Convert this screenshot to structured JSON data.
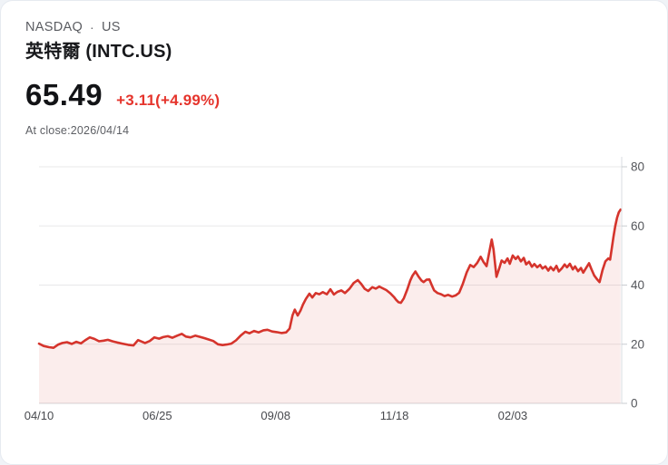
{
  "header": {
    "exchange": "NASDAQ",
    "separator": "·",
    "region": "US",
    "name": "英特爾 (INTC.US)"
  },
  "quote": {
    "price": "65.49",
    "change": "+3.11(+4.99%)",
    "as_of": "At close:2026/04/14"
  },
  "colors": {
    "change_up_red": "#e5342c",
    "line_red": "#d5342c",
    "area_fill_pink": "rgba(213,52,44,0.09)",
    "gridline": "#e8e8ea",
    "axis_line": "#d9dce0"
  },
  "chart_data": {
    "type": "area",
    "symbol": "INTC.US",
    "grid": true,
    "legend": false,
    "ylim": [
      0,
      80
    ],
    "y_ticks": [
      80,
      60,
      40,
      20,
      0
    ],
    "x_ticks": [
      {
        "label": "04/10",
        "pos": 0.0
      },
      {
        "label": "06/25",
        "pos": 0.203
      },
      {
        "label": "09/08",
        "pos": 0.406
      },
      {
        "label": "11/18",
        "pos": 0.61
      },
      {
        "label": "02/03",
        "pos": 0.813
      }
    ],
    "last_close": 65.49,
    "line_color": "#d5342c",
    "fill_color": "rgba(213,52,44,0.09)",
    "points": [
      [
        0.0,
        20.2
      ],
      [
        0.008,
        19.4
      ],
      [
        0.017,
        19.0
      ],
      [
        0.025,
        18.8
      ],
      [
        0.033,
        19.9
      ],
      [
        0.04,
        20.4
      ],
      [
        0.048,
        20.7
      ],
      [
        0.056,
        20.1
      ],
      [
        0.064,
        20.8
      ],
      [
        0.072,
        20.3
      ],
      [
        0.079,
        21.3
      ],
      [
        0.087,
        22.3
      ],
      [
        0.095,
        21.8
      ],
      [
        0.103,
        21.0
      ],
      [
        0.111,
        21.2
      ],
      [
        0.118,
        21.5
      ],
      [
        0.126,
        21.0
      ],
      [
        0.134,
        20.6
      ],
      [
        0.143,
        20.2
      ],
      [
        0.153,
        19.8
      ],
      [
        0.162,
        19.6
      ],
      [
        0.17,
        21.4
      ],
      [
        0.176,
        20.9
      ],
      [
        0.182,
        20.4
      ],
      [
        0.19,
        21.1
      ],
      [
        0.198,
        22.3
      ],
      [
        0.206,
        21.9
      ],
      [
        0.213,
        22.4
      ],
      [
        0.221,
        22.7
      ],
      [
        0.229,
        22.2
      ],
      [
        0.237,
        22.9
      ],
      [
        0.245,
        23.5
      ],
      [
        0.252,
        22.6
      ],
      [
        0.26,
        22.3
      ],
      [
        0.268,
        22.9
      ],
      [
        0.276,
        22.5
      ],
      [
        0.283,
        22.1
      ],
      [
        0.291,
        21.6
      ],
      [
        0.299,
        21.1
      ],
      [
        0.307,
        20.0
      ],
      [
        0.315,
        19.7
      ],
      [
        0.322,
        19.9
      ],
      [
        0.33,
        20.2
      ],
      [
        0.338,
        21.3
      ],
      [
        0.346,
        22.9
      ],
      [
        0.354,
        24.2
      ],
      [
        0.361,
        23.7
      ],
      [
        0.369,
        24.5
      ],
      [
        0.377,
        24.0
      ],
      [
        0.385,
        24.7
      ],
      [
        0.392,
        24.9
      ],
      [
        0.4,
        24.3
      ],
      [
        0.408,
        24.1
      ],
      [
        0.416,
        23.8
      ],
      [
        0.424,
        24.0
      ],
      [
        0.43,
        25.3
      ],
      [
        0.435,
        29.8
      ],
      [
        0.439,
        31.7
      ],
      [
        0.444,
        29.7
      ],
      [
        0.449,
        31.5
      ],
      [
        0.453,
        33.4
      ],
      [
        0.458,
        35.3
      ],
      [
        0.464,
        37.1
      ],
      [
        0.469,
        35.8
      ],
      [
        0.475,
        37.3
      ],
      [
        0.481,
        36.9
      ],
      [
        0.487,
        37.6
      ],
      [
        0.494,
        36.9
      ],
      [
        0.5,
        38.6
      ],
      [
        0.506,
        36.8
      ],
      [
        0.512,
        37.7
      ],
      [
        0.519,
        38.2
      ],
      [
        0.525,
        37.3
      ],
      [
        0.533,
        38.8
      ],
      [
        0.54,
        40.7
      ],
      [
        0.547,
        41.7
      ],
      [
        0.553,
        40.4
      ],
      [
        0.559,
        38.7
      ],
      [
        0.565,
        38.0
      ],
      [
        0.572,
        39.3
      ],
      [
        0.578,
        38.8
      ],
      [
        0.584,
        39.5
      ],
      [
        0.59,
        38.9
      ],
      [
        0.596,
        38.3
      ],
      [
        0.603,
        37.2
      ],
      [
        0.609,
        36.0
      ],
      [
        0.613,
        35.0
      ],
      [
        0.617,
        34.2
      ],
      [
        0.621,
        34.0
      ],
      [
        0.626,
        35.5
      ],
      [
        0.632,
        38.5
      ],
      [
        0.637,
        41.5
      ],
      [
        0.641,
        43.2
      ],
      [
        0.646,
        44.6
      ],
      [
        0.651,
        43.0
      ],
      [
        0.656,
        41.6
      ],
      [
        0.66,
        41.0
      ],
      [
        0.665,
        41.8
      ],
      [
        0.67,
        41.9
      ],
      [
        0.674,
        40.0
      ],
      [
        0.678,
        38.2
      ],
      [
        0.684,
        37.3
      ],
      [
        0.69,
        36.9
      ],
      [
        0.696,
        36.3
      ],
      [
        0.702,
        36.7
      ],
      [
        0.709,
        36.1
      ],
      [
        0.715,
        36.5
      ],
      [
        0.721,
        37.4
      ],
      [
        0.727,
        40.2
      ],
      [
        0.734,
        44.3
      ],
      [
        0.74,
        46.8
      ],
      [
        0.746,
        46.1
      ],
      [
        0.752,
        47.5
      ],
      [
        0.758,
        49.6
      ],
      [
        0.763,
        47.8
      ],
      [
        0.768,
        46.4
      ],
      [
        0.772,
        50.4
      ],
      [
        0.777,
        55.4
      ],
      [
        0.78,
        52.0
      ],
      [
        0.785,
        42.8
      ],
      [
        0.79,
        45.8
      ],
      [
        0.794,
        48.3
      ],
      [
        0.799,
        47.5
      ],
      [
        0.804,
        49.0
      ],
      [
        0.808,
        47.2
      ],
      [
        0.813,
        50.0
      ],
      [
        0.818,
        48.8
      ],
      [
        0.822,
        49.7
      ],
      [
        0.827,
        48.0
      ],
      [
        0.832,
        49.2
      ],
      [
        0.836,
        47.0
      ],
      [
        0.841,
        47.9
      ],
      [
        0.846,
        46.2
      ],
      [
        0.85,
        47.1
      ],
      [
        0.855,
        46.0
      ],
      [
        0.86,
        46.8
      ],
      [
        0.864,
        45.6
      ],
      [
        0.869,
        46.3
      ],
      [
        0.874,
        44.9
      ],
      [
        0.878,
        46.1
      ],
      [
        0.883,
        45.0
      ],
      [
        0.888,
        46.5
      ],
      [
        0.892,
        44.6
      ],
      [
        0.897,
        45.6
      ],
      [
        0.902,
        47.0
      ],
      [
        0.906,
        46.0
      ],
      [
        0.911,
        47.2
      ],
      [
        0.916,
        45.3
      ],
      [
        0.92,
        46.3
      ],
      [
        0.925,
        44.7
      ],
      [
        0.93,
        45.8
      ],
      [
        0.934,
        44.2
      ],
      [
        0.939,
        45.8
      ],
      [
        0.944,
        47.4
      ],
      [
        0.948,
        45.4
      ],
      [
        0.953,
        43.2
      ],
      [
        0.958,
        41.9
      ],
      [
        0.962,
        41.0
      ],
      [
        0.967,
        45.0
      ],
      [
        0.972,
        48.0
      ],
      [
        0.977,
        49.0
      ],
      [
        0.98,
        48.6
      ],
      [
        0.983,
        52.5
      ],
      [
        0.986,
        56.5
      ],
      [
        0.989,
        60.0
      ],
      [
        0.992,
        62.8
      ],
      [
        0.995,
        64.6
      ],
      [
        0.998,
        65.49
      ]
    ]
  }
}
